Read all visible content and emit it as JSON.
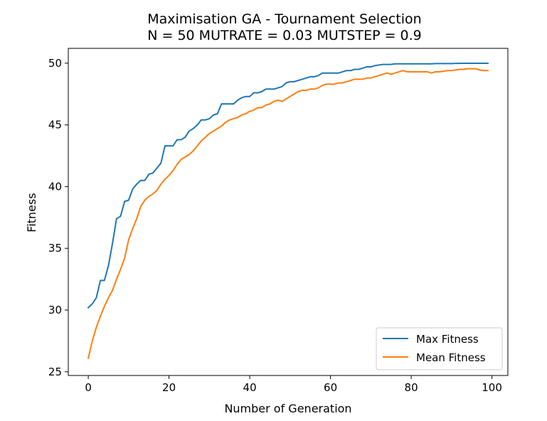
{
  "chart_data": {
    "type": "line",
    "title": "Maximisation GA - Tournament Selection",
    "subtitle": "N = 50 MUTRATE = 0.03 MUTSTEP = 0.9",
    "xlabel": "Number of Generation",
    "ylabel": "Fitness",
    "xlim": [
      -4.95,
      103.95
    ],
    "ylim": [
      24.7,
      51.2
    ],
    "xticks": [
      0,
      20,
      40,
      60,
      80,
      100
    ],
    "yticks": [
      25,
      30,
      35,
      40,
      45,
      50
    ],
    "grid": false,
    "legend": "lower-right",
    "series": [
      {
        "name": "Max Fitness",
        "color": "#1f77b4",
        "x": [
          0,
          1,
          2,
          3,
          4,
          5,
          6,
          7,
          8,
          9,
          10,
          11,
          12,
          13,
          14,
          15,
          16,
          17,
          18,
          19,
          20,
          21,
          22,
          23,
          24,
          25,
          26,
          27,
          28,
          29,
          30,
          31,
          32,
          33,
          34,
          35,
          36,
          37,
          38,
          39,
          40,
          41,
          42,
          43,
          44,
          45,
          46,
          47,
          48,
          49,
          50,
          51,
          52,
          53,
          54,
          55,
          56,
          57,
          58,
          59,
          60,
          61,
          62,
          63,
          64,
          65,
          66,
          67,
          68,
          69,
          70,
          71,
          72,
          73,
          74,
          75,
          76,
          77,
          78,
          79,
          80,
          81,
          82,
          83,
          84,
          85,
          86,
          87,
          88,
          89,
          90,
          91,
          92,
          93,
          94,
          95,
          96,
          97,
          98,
          99
        ],
        "values": [
          30.2,
          30.5,
          31.0,
          32.4,
          32.4,
          33.6,
          35.4,
          37.4,
          37.6,
          38.8,
          38.9,
          39.8,
          40.2,
          40.5,
          40.5,
          41.0,
          41.1,
          41.5,
          41.9,
          43.3,
          43.3,
          43.3,
          43.8,
          43.8,
          44.0,
          44.5,
          44.7,
          45.0,
          45.4,
          45.4,
          45.5,
          45.8,
          45.9,
          46.7,
          46.7,
          46.7,
          46.7,
          47.0,
          47.2,
          47.3,
          47.3,
          47.6,
          47.6,
          47.7,
          47.9,
          47.9,
          47.9,
          48.0,
          48.1,
          48.4,
          48.5,
          48.5,
          48.6,
          48.7,
          48.8,
          48.9,
          48.9,
          49.0,
          49.2,
          49.2,
          49.2,
          49.2,
          49.2,
          49.3,
          49.4,
          49.4,
          49.5,
          49.5,
          49.6,
          49.7,
          49.7,
          49.8,
          49.85,
          49.9,
          49.9,
          49.9,
          49.95,
          49.95,
          49.95,
          49.95,
          49.95,
          49.95,
          49.95,
          49.95,
          49.95,
          49.95,
          49.97,
          49.97,
          49.97,
          49.97,
          49.97,
          49.98,
          49.98,
          49.99,
          49.99,
          49.99,
          49.99,
          49.99,
          49.99,
          49.99
        ]
      },
      {
        "name": "Mean Fitness",
        "color": "#ff7f0e",
        "x": [
          0,
          1,
          2,
          3,
          4,
          5,
          6,
          7,
          8,
          9,
          10,
          11,
          12,
          13,
          14,
          15,
          16,
          17,
          18,
          19,
          20,
          21,
          22,
          23,
          24,
          25,
          26,
          27,
          28,
          29,
          30,
          31,
          32,
          33,
          34,
          35,
          36,
          37,
          38,
          39,
          40,
          41,
          42,
          43,
          44,
          45,
          46,
          47,
          48,
          49,
          50,
          51,
          52,
          53,
          54,
          55,
          56,
          57,
          58,
          59,
          60,
          61,
          62,
          63,
          64,
          65,
          66,
          67,
          68,
          69,
          70,
          71,
          72,
          73,
          74,
          75,
          76,
          77,
          78,
          79,
          80,
          81,
          82,
          83,
          84,
          85,
          86,
          87,
          88,
          89,
          90,
          91,
          92,
          93,
          94,
          95,
          96,
          97,
          98,
          99
        ],
        "values": [
          26.1,
          27.5,
          28.6,
          29.5,
          30.3,
          31.0,
          31.6,
          32.5,
          33.3,
          34.2,
          35.7,
          36.6,
          37.4,
          38.4,
          38.9,
          39.2,
          39.4,
          39.7,
          40.2,
          40.6,
          40.9,
          41.3,
          41.8,
          42.2,
          42.4,
          42.6,
          42.9,
          43.3,
          43.7,
          44.0,
          44.3,
          44.5,
          44.7,
          44.9,
          45.2,
          45.4,
          45.5,
          45.6,
          45.8,
          45.9,
          46.1,
          46.2,
          46.4,
          46.4,
          46.6,
          46.7,
          46.9,
          47.0,
          46.9,
          47.1,
          47.3,
          47.5,
          47.7,
          47.8,
          47.8,
          47.9,
          47.9,
          48.0,
          48.2,
          48.3,
          48.3,
          48.3,
          48.4,
          48.4,
          48.5,
          48.6,
          48.7,
          48.7,
          48.7,
          48.8,
          48.8,
          48.9,
          49.0,
          49.1,
          49.2,
          49.1,
          49.2,
          49.3,
          49.4,
          49.3,
          49.3,
          49.3,
          49.3,
          49.3,
          49.3,
          49.2,
          49.3,
          49.3,
          49.35,
          49.4,
          49.4,
          49.45,
          49.5,
          49.5,
          49.55,
          49.55,
          49.55,
          49.45,
          49.4,
          49.4
        ]
      }
    ]
  }
}
